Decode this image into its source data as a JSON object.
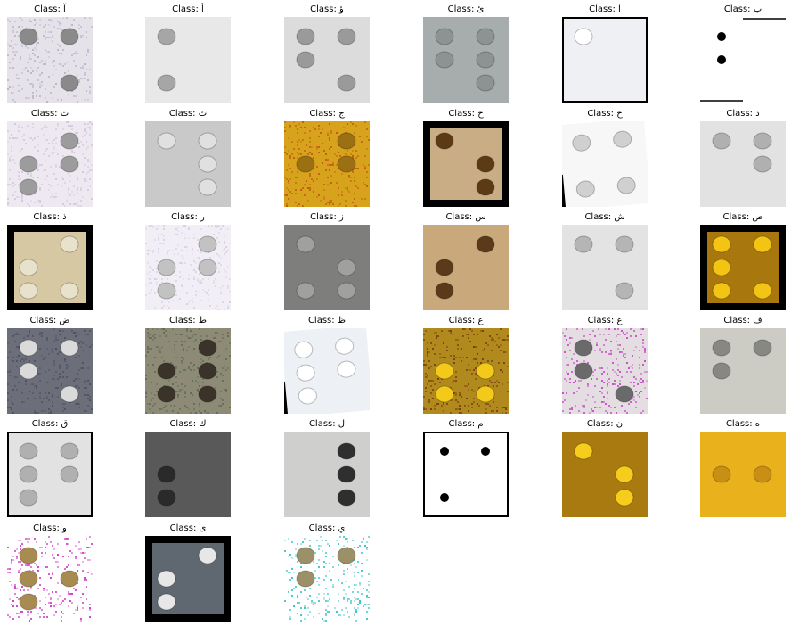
{
  "samples": [
    {
      "title": "Class: آ",
      "dots": [
        1,
        4,
        6
      ],
      "bg": "#e6e2ea",
      "dot": "#8a8a8a",
      "style": "noise",
      "noise": "#b9b4c6"
    },
    {
      "title": "Class: أ",
      "dots": [
        1,
        3
      ],
      "bg": "#e8e8e8",
      "dot": "#a6a6a6",
      "style": "plain"
    },
    {
      "title": "Class: ؤ",
      "dots": [
        1,
        2,
        4,
        6
      ],
      "bg": "#dcdcdc",
      "dot": "#9a9a9a",
      "style": "plain"
    },
    {
      "title": "Class: ئ",
      "dots": [
        1,
        2,
        4,
        5,
        6
      ],
      "bg": "#a7adad",
      "dot": "#8d9393",
      "style": "plain"
    },
    {
      "title": "Class: ا",
      "dots": [
        1
      ],
      "bg": "#eef0f4",
      "dot": "#ffffff",
      "style": "framed"
    },
    {
      "title": "Class: ب",
      "dots": [
        1,
        2
      ],
      "bg": "#ffffff",
      "dot": "#000000",
      "style": "sharp"
    },
    {
      "title": "Class: ت",
      "dots": [
        2,
        3,
        4,
        5
      ],
      "bg": "#eee9f1",
      "dot": "#9c9c9c",
      "style": "noise",
      "noise": "#d2c6dc"
    },
    {
      "title": "Class: ث",
      "dots": [
        1,
        4,
        5,
        6
      ],
      "bg": "#c9c9c9",
      "dot": "#e0e0e0",
      "style": "plain"
    },
    {
      "title": "Class: ج",
      "dots": [
        2,
        4,
        5
      ],
      "bg": "#d7a21c",
      "dot": "#9a7012",
      "style": "noise",
      "noise": "#c05a10"
    },
    {
      "title": "Class: ح",
      "dots": [
        1,
        5,
        6
      ],
      "bg": "#c9ad85",
      "dot": "#5d3a16",
      "style": "padded"
    },
    {
      "title": "Class: خ",
      "dots": [
        1,
        3,
        4,
        6
      ],
      "bg": "#f7f7f7",
      "dot": "#d0d0d0",
      "style": "rotated"
    },
    {
      "title": "Class: د",
      "dots": [
        1,
        4,
        5
      ],
      "bg": "#e2e2e2",
      "dot": "#b0b0b0",
      "style": "plain"
    },
    {
      "title": "Class: ذ",
      "dots": [
        2,
        3,
        4,
        6
      ],
      "bg": "#d6c8a2",
      "dot": "#e8e2cc",
      "style": "padded"
    },
    {
      "title": "Class: ر",
      "dots": [
        2,
        3,
        4,
        5
      ],
      "bg": "#f2eef6",
      "dot": "#c2c2c2",
      "style": "noise",
      "noise": "#d9cfe3"
    },
    {
      "title": "Class: ز",
      "dots": [
        1,
        3,
        5,
        6
      ],
      "bg": "#7e7f7d",
      "dot": "#a0a09e",
      "style": "plain"
    },
    {
      "title": "Class: س",
      "dots": [
        2,
        3,
        4
      ],
      "bg": "#c9a97c",
      "dot": "#5a3a18",
      "style": "plain"
    },
    {
      "title": "Class: ش",
      "dots": [
        1,
        4,
        6
      ],
      "bg": "#e3e3e3",
      "dot": "#b5b5b5",
      "style": "plain"
    },
    {
      "title": "Class: ص",
      "dots": [
        1,
        2,
        3,
        4,
        6
      ],
      "bg": "#a8770e",
      "dot": "#f4c414",
      "style": "padded"
    },
    {
      "title": "Class: ض",
      "dots": [
        1,
        2,
        4,
        6
      ],
      "bg": "#6c6f7a",
      "dot": "#dadada",
      "style": "noise",
      "noise": "#4d5060"
    },
    {
      "title": "Class: ط",
      "dots": [
        2,
        3,
        4,
        5,
        6
      ],
      "bg": "#8d8a76",
      "dot": "#3a3329",
      "style": "noise",
      "noise": "#5c6a58"
    },
    {
      "title": "Class: ظ",
      "dots": [
        1,
        2,
        3,
        4,
        5
      ],
      "bg": "#edf0f4",
      "dot": "#ffffff",
      "style": "rotated"
    },
    {
      "title": "Class: ع",
      "dots": [
        2,
        3,
        5,
        6
      ],
      "bg": "#b08a1c",
      "dot": "#f3c91a",
      "style": "noise",
      "noise": "#7a3d12"
    },
    {
      "title": "Class: غ",
      "dots": [
        1,
        2,
        6
      ],
      "bg": "#e4dde2",
      "dot": "#6a6a6a",
      "style": "noise",
      "noise": "#c44ac4"
    },
    {
      "title": "Class: ف",
      "dots": [
        1,
        2,
        4
      ],
      "bg": "#ccccc4",
      "dot": "#888882",
      "style": "plain"
    },
    {
      "title": "Class: ق",
      "dots": [
        1,
        2,
        3,
        4,
        5
      ],
      "bg": "#e2e2e2",
      "dot": "#b0b0b0",
      "style": "framed"
    },
    {
      "title": "Class: ك",
      "dots": [
        2,
        3
      ],
      "bg": "#595959",
      "dot": "#2a2a2a",
      "style": "plain"
    },
    {
      "title": "Class: ل",
      "dots": [
        4,
        5,
        6
      ],
      "bg": "#cfcfcd",
      "dot": "#2f2f2f",
      "style": "plain"
    },
    {
      "title": "Class: م",
      "dots": [
        1,
        3,
        4
      ],
      "bg": "#ffffff",
      "dot": "#000000",
      "style": "framed"
    },
    {
      "title": "Class: ن",
      "dots": [
        1,
        5,
        6
      ],
      "bg": "#a87a10",
      "dot": "#f6cd1c",
      "style": "plain"
    },
    {
      "title": "Class: ه",
      "dots": [
        2,
        5
      ],
      "bg": "#e9b21d",
      "dot": "#c98f15",
      "style": "plain"
    },
    {
      "title": "Class: و",
      "dots": [
        1,
        2,
        3,
        5
      ],
      "bg": "#ffffff",
      "dot": "#a88b50",
      "style": "noise",
      "noise": "#d03ac8"
    },
    {
      "title": "Class: ى",
      "dots": [
        2,
        3,
        4
      ],
      "bg": "#5f6771",
      "dot": "#e7e7e7",
      "style": "padded"
    },
    {
      "title": "Class: ي",
      "dots": [
        1,
        2,
        4
      ],
      "bg": "#ffffff",
      "dot": "#9c9068",
      "style": "noise",
      "noise": "#34c6c8"
    }
  ]
}
